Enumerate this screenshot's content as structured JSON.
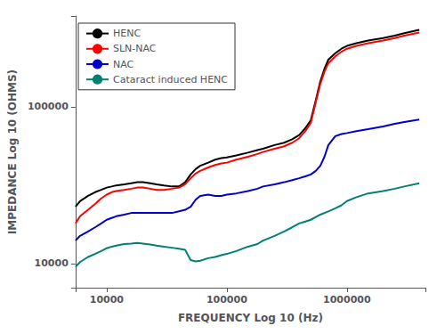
{
  "chart_data": {
    "type": "line",
    "xlabel": "FREQUENCY Log 10 (Hz)",
    "ylabel": "IMPEDANCE Log 10 (OHMS)",
    "log": true,
    "grid": false,
    "legend": "upper left",
    "xlim": [
      5500,
      4500000
    ],
    "ylim": [
      7000,
      380000
    ],
    "xticks": [
      10000,
      100000,
      1000000
    ],
    "yticks": [
      10000,
      100000
    ],
    "series": [
      {
        "name": "HENC",
        "color": "#000000",
        "x": [
          5500,
          6000,
          7000,
          8000,
          9000,
          10000,
          11000,
          12000,
          14000,
          16000,
          18000,
          20000,
          23000,
          26000,
          30000,
          35000,
          40000,
          45000,
          50000,
          55000,
          60000,
          70000,
          80000,
          90000,
          100000,
          120000,
          150000,
          180000,
          200000,
          250000,
          300000,
          350000,
          400000,
          450000,
          500000,
          550000,
          600000,
          650000,
          700000,
          800000,
          900000,
          1000000,
          1200000,
          1500000,
          2000000,
          2500000,
          3000000,
          4000000
        ],
        "values": [
          23000,
          25000,
          27000,
          28500,
          29500,
          30500,
          31000,
          31500,
          32000,
          32500,
          33000,
          33000,
          32500,
          32000,
          31500,
          31000,
          31000,
          33000,
          37000,
          40000,
          42000,
          44000,
          46000,
          47000,
          47500,
          49000,
          51000,
          53000,
          54000,
          57000,
          59000,
          62000,
          66000,
          73000,
          82000,
          110000,
          145000,
          175000,
          200000,
          220000,
          235000,
          245000,
          255000,
          265000,
          275000,
          285000,
          295000,
          310000
        ]
      },
      {
        "name": "SLN-NAC",
        "color": "#ff0000",
        "x": [
          5500,
          6000,
          7000,
          8000,
          9000,
          10000,
          11000,
          12000,
          14000,
          16000,
          18000,
          20000,
          23000,
          26000,
          30000,
          35000,
          40000,
          45000,
          50000,
          55000,
          60000,
          70000,
          80000,
          90000,
          100000,
          120000,
          150000,
          180000,
          200000,
          250000,
          300000,
          350000,
          400000,
          450000,
          500000,
          550000,
          600000,
          650000,
          700000,
          800000,
          900000,
          1000000,
          1200000,
          1500000,
          2000000,
          2500000,
          3000000,
          4000000
        ],
        "values": [
          18000,
          20000,
          22000,
          24000,
          26000,
          27500,
          28500,
          29000,
          29500,
          30000,
          30500,
          30500,
          30000,
          29500,
          29500,
          30000,
          30500,
          32000,
          35000,
          37500,
          39000,
          41000,
          42500,
          43500,
          44000,
          46000,
          48000,
          50000,
          51500,
          54000,
          56000,
          59000,
          63000,
          70000,
          79000,
          107000,
          140000,
          168000,
          190000,
          210000,
          225000,
          235000,
          245000,
          255000,
          265000,
          275000,
          285000,
          298000
        ]
      },
      {
        "name": "NAC",
        "color": "#0000cc",
        "x": [
          5500,
          6000,
          7000,
          8000,
          9000,
          10000,
          11000,
          12000,
          14000,
          16000,
          18000,
          20000,
          23000,
          26000,
          30000,
          35000,
          40000,
          45000,
          50000,
          55000,
          60000,
          70000,
          80000,
          90000,
          100000,
          120000,
          150000,
          180000,
          200000,
          250000,
          300000,
          350000,
          400000,
          450000,
          500000,
          550000,
          600000,
          650000,
          700000,
          800000,
          900000,
          1000000,
          1200000,
          1500000,
          2000000,
          2500000,
          3000000,
          4000000
        ],
        "values": [
          14000,
          15000,
          16000,
          17000,
          18000,
          19000,
          19500,
          20000,
          20500,
          21000,
          21000,
          21000,
          21000,
          21000,
          21000,
          21000,
          21500,
          22000,
          23000,
          25500,
          27000,
          27500,
          27000,
          27000,
          27500,
          28000,
          29000,
          30000,
          31000,
          32000,
          33000,
          34000,
          35000,
          36000,
          37000,
          39000,
          42000,
          48000,
          57000,
          65000,
          67000,
          68000,
          70000,
          72000,
          75000,
          78000,
          80000,
          83000
        ]
      },
      {
        "name": "Cataract induced HENC",
        "color": "#008070",
        "x": [
          5500,
          6000,
          7000,
          8000,
          9000,
          10000,
          11000,
          12000,
          14000,
          16000,
          18000,
          20000,
          23000,
          26000,
          30000,
          35000,
          40000,
          45000,
          50000,
          55000,
          60000,
          70000,
          80000,
          90000,
          100000,
          120000,
          150000,
          180000,
          200000,
          250000,
          300000,
          350000,
          400000,
          450000,
          500000,
          600000,
          700000,
          800000,
          900000,
          1000000,
          1200000,
          1500000,
          2000000,
          2500000,
          3000000,
          4000000
        ],
        "values": [
          9500,
          10200,
          11000,
          11500,
          12000,
          12500,
          12800,
          13000,
          13300,
          13400,
          13500,
          13400,
          13200,
          13000,
          12800,
          12600,
          12400,
          12200,
          10500,
          10300,
          10400,
          10800,
          11000,
          11300,
          11500,
          12000,
          12800,
          13300,
          14000,
          15000,
          16000,
          17000,
          18000,
          18500,
          19000,
          20500,
          21500,
          22500,
          23500,
          25000,
          26500,
          28000,
          29000,
          30000,
          31000,
          32500
        ]
      }
    ]
  }
}
